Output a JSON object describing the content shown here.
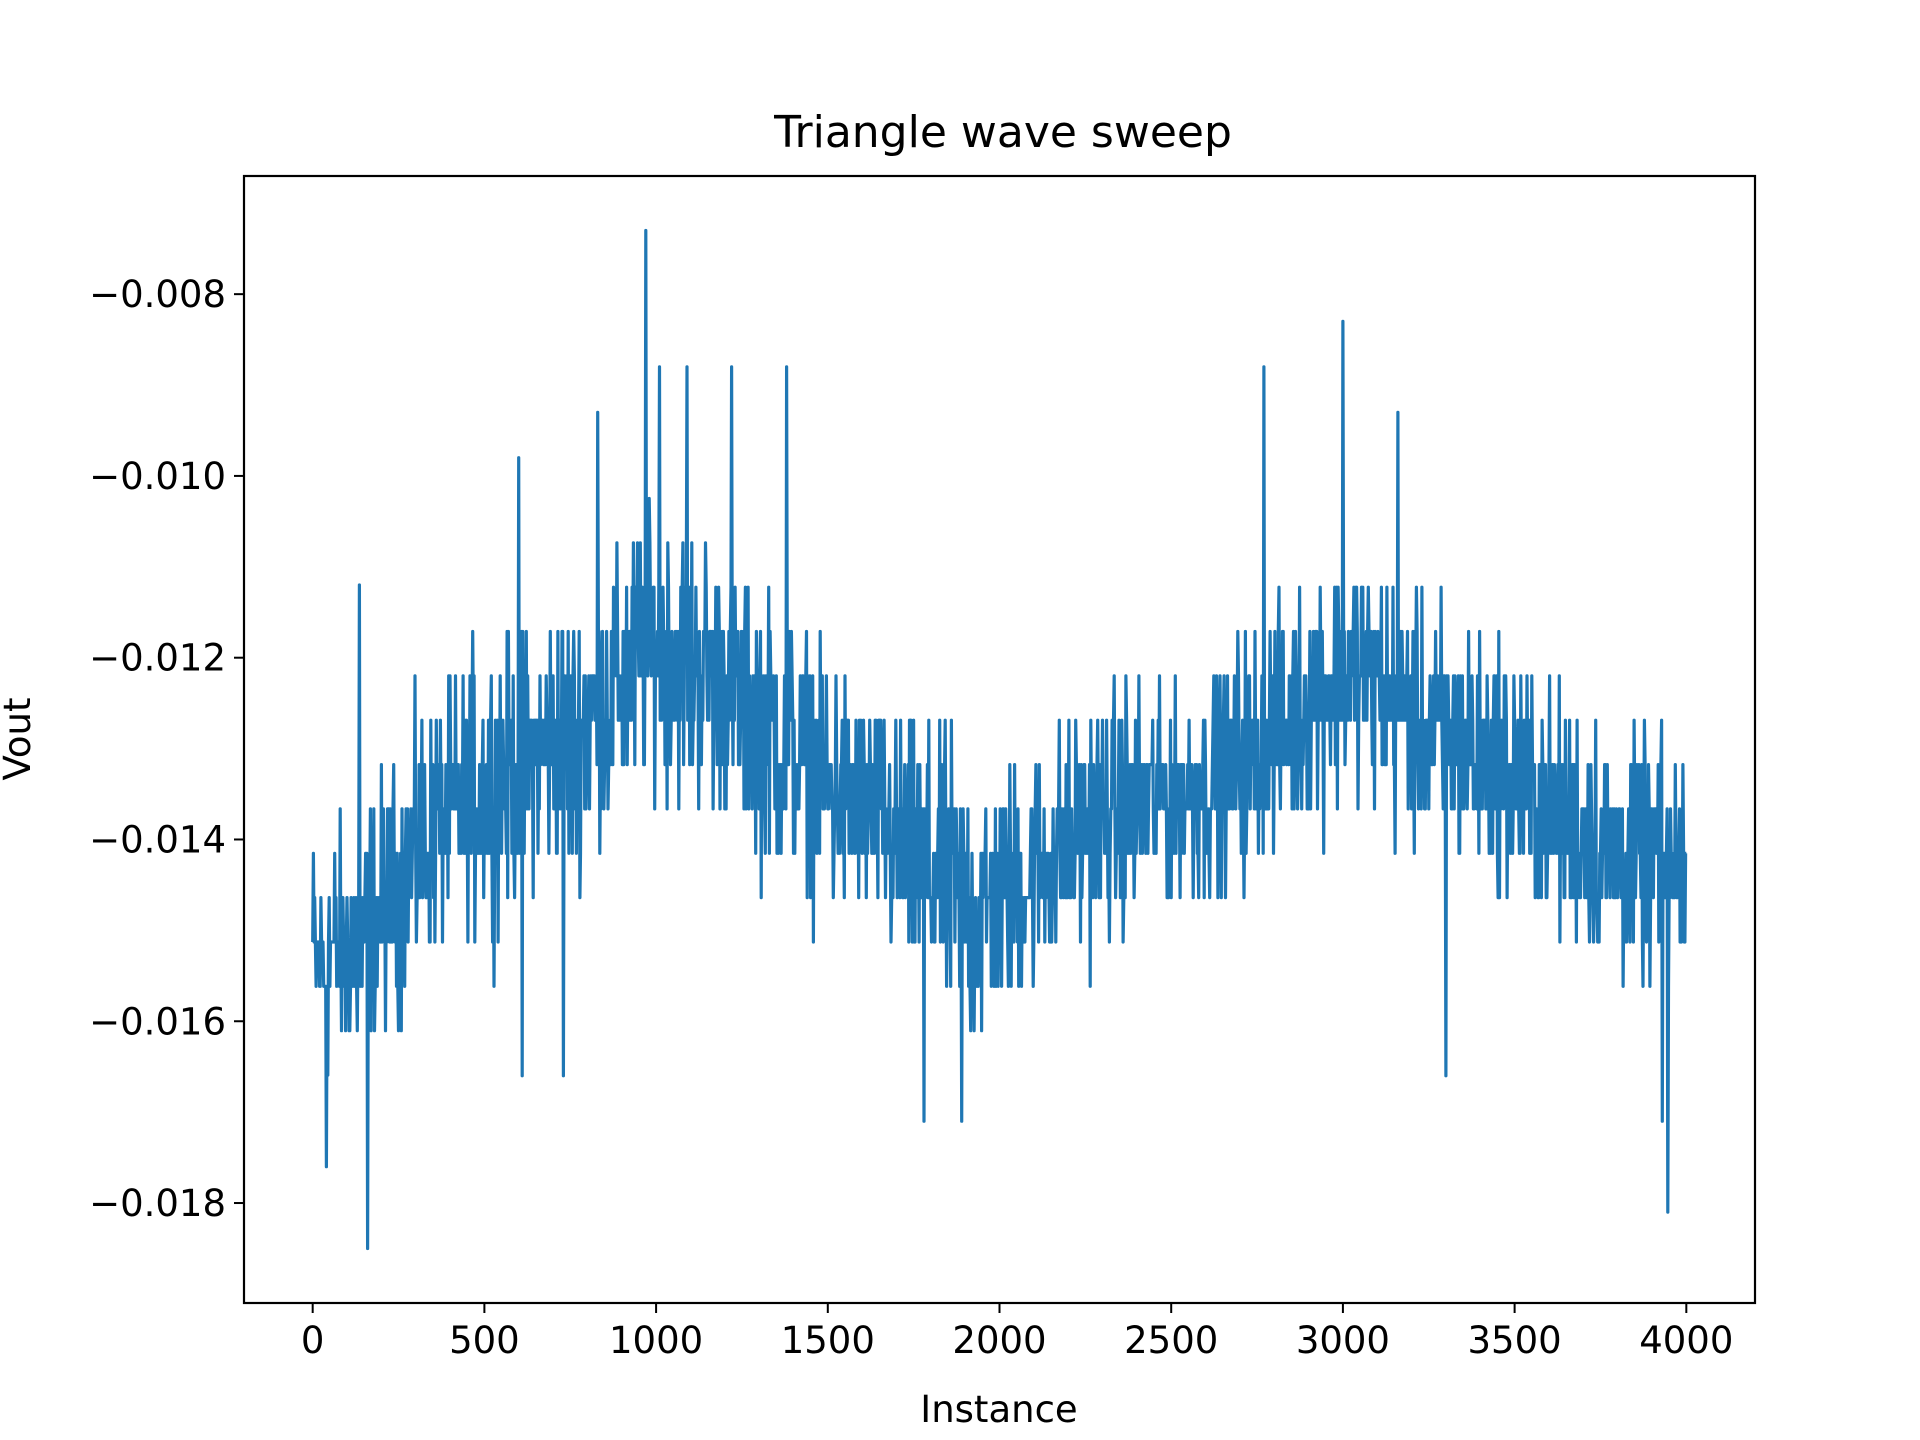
{
  "chart_data": {
    "type": "line",
    "title": "Triangle wave sweep",
    "xlabel": "Instance",
    "ylabel": "Vout",
    "xlim": [
      -200,
      4200
    ],
    "ylim": [
      -0.0191,
      -0.0067
    ],
    "xticks": [
      0,
      500,
      1000,
      1500,
      2000,
      2500,
      3000,
      3500,
      4000
    ],
    "xtick_labels": [
      "0",
      "500",
      "1000",
      "1500",
      "2000",
      "2500",
      "3000",
      "3500",
      "4000"
    ],
    "yticks": [
      -0.018,
      -0.016,
      -0.014,
      -0.012,
      -0.01,
      -0.008
    ],
    "ytick_labels": [
      "−0.018",
      "−0.016",
      "−0.014",
      "−0.012",
      "−0.010",
      "−0.008"
    ],
    "grid": false,
    "legend": "none",
    "series": [
      {
        "color": "#1f77b4",
        "description": "noisy triangle wave, ~4000 samples, quantized at ~0.00049 V steps",
        "envelope": {
          "x": [
            0,
            150,
            300,
            500,
            750,
            980,
            1150,
            1350,
            1600,
            1800,
            1950,
            2100,
            2350,
            2600,
            2850,
            3000,
            3200,
            3450,
            3750,
            4000
          ],
          "min": [
            -0.0171,
            -0.0171,
            -0.0161,
            -0.0156,
            -0.0151,
            -0.0141,
            -0.0141,
            -0.0151,
            -0.0156,
            -0.0166,
            -0.0171,
            -0.0161,
            -0.0156,
            -0.0151,
            -0.0146,
            -0.0141,
            -0.0146,
            -0.0151,
            -0.0161,
            -0.0161
          ],
          "max": [
            -0.0136,
            -0.0131,
            -0.0121,
            -0.0112,
            -0.0107,
            -0.0097,
            -0.0102,
            -0.0107,
            -0.0117,
            -0.0121,
            -0.0126,
            -0.0126,
            -0.0117,
            -0.0117,
            -0.0107,
            -0.0102,
            -0.0107,
            -0.0112,
            -0.0121,
            -0.0126
          ]
        },
        "spikes": [
          {
            "x": 40,
            "y": -0.0176
          },
          {
            "x": 160,
            "y": -0.0185
          },
          {
            "x": 135,
            "y": -0.0112
          },
          {
            "x": 610,
            "y": -0.0166
          },
          {
            "x": 730,
            "y": -0.0166
          },
          {
            "x": 600,
            "y": -0.0098
          },
          {
            "x": 830,
            "y": -0.0093
          },
          {
            "x": 970,
            "y": -0.0073
          },
          {
            "x": 1010,
            "y": -0.0088
          },
          {
            "x": 1090,
            "y": -0.0088
          },
          {
            "x": 1220,
            "y": -0.0088
          },
          {
            "x": 1380,
            "y": -0.0088
          },
          {
            "x": 1780,
            "y": -0.0171
          },
          {
            "x": 1890,
            "y": -0.0171
          },
          {
            "x": 2770,
            "y": -0.0088
          },
          {
            "x": 3000,
            "y": -0.0083
          },
          {
            "x": 3160,
            "y": -0.0093
          },
          {
            "x": 3300,
            "y": -0.0166
          },
          {
            "x": 3930,
            "y": -0.0171
          },
          {
            "x": 3945,
            "y": -0.0181
          }
        ]
      }
    ]
  }
}
